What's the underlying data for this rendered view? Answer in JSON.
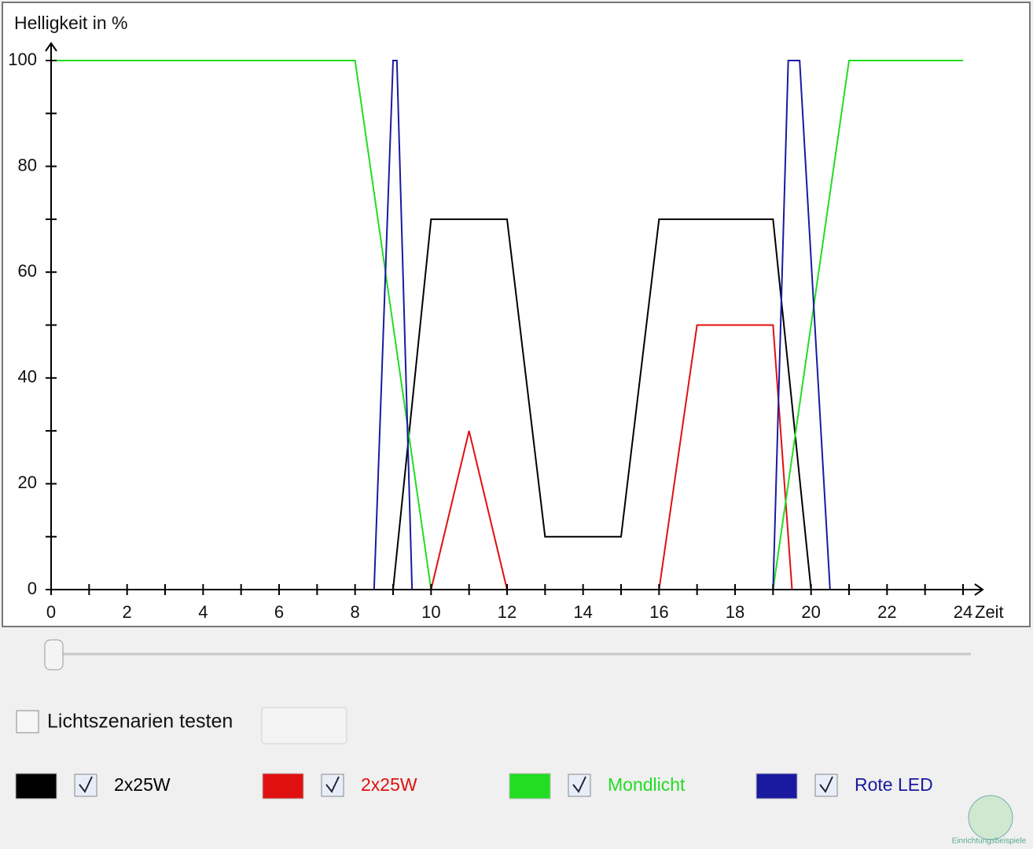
{
  "chart_data": {
    "type": "line",
    "ylabel": "Helligkeit in %",
    "xlabel": "Zeit",
    "xlim": [
      0,
      24
    ],
    "ylim": [
      0,
      100
    ],
    "xticks": [
      0,
      2,
      4,
      6,
      8,
      10,
      12,
      14,
      16,
      18,
      20,
      22,
      24
    ],
    "xminorticks": [
      1,
      3,
      5,
      7,
      9,
      11,
      13,
      15,
      17,
      19,
      21,
      23
    ],
    "yticks": [
      0,
      20,
      40,
      60,
      80,
      100
    ],
    "yminorticks": [
      10,
      30,
      50,
      70,
      90
    ],
    "series": [
      {
        "name": "2x25W",
        "color": "#000000",
        "x": [
          0,
          9,
          10,
          12,
          13,
          15,
          16,
          19,
          20,
          24
        ],
        "values": [
          0,
          0,
          70,
          70,
          10,
          10,
          70,
          70,
          0,
          0
        ]
      },
      {
        "name": "2x25W",
        "color": "#e01010",
        "x": [
          0,
          10,
          11,
          12,
          16,
          17,
          19,
          19.5,
          24
        ],
        "values": [
          0,
          0,
          30,
          0,
          0,
          50,
          50,
          0,
          0
        ]
      },
      {
        "name": "Mondlicht",
        "color": "#22dd22",
        "x": [
          0,
          8,
          10,
          19,
          21,
          24
        ],
        "values": [
          100,
          100,
          0,
          0,
          100,
          100
        ]
      },
      {
        "name": "Rote LED",
        "color": "#1a1aa0",
        "x": [
          0,
          8.5,
          9,
          9.1,
          9.5,
          19,
          19.4,
          19.7,
          20.5,
          24
        ],
        "values": [
          0,
          0,
          100,
          100,
          0,
          0,
          100,
          100,
          0,
          0
        ]
      }
    ]
  },
  "controls": {
    "test_label": "Lichtszenarien testen"
  },
  "watermark": "Einrichtungsbeispiele"
}
